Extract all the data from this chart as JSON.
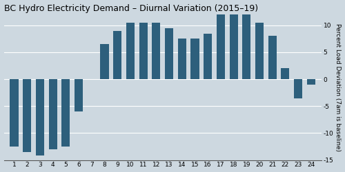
{
  "title": "BC Hydro Electricity Demand – Diurnal Variation (2015–19)",
  "hours": [
    1,
    2,
    3,
    4,
    5,
    6,
    7,
    8,
    9,
    10,
    11,
    12,
    13,
    14,
    15,
    16,
    17,
    18,
    19,
    20,
    21,
    22,
    23,
    24
  ],
  "values": [
    -12.5,
    -13.5,
    -14.2,
    -13.0,
    -12.5,
    -6.0,
    0.0,
    6.5,
    9.0,
    10.5,
    10.5,
    10.5,
    9.5,
    7.5,
    7.5,
    8.5,
    12.0,
    13.5,
    12.5,
    10.5,
    8.0,
    2.0,
    -3.5,
    -1.0
  ],
  "bar_color": "#2d5f7c",
  "background_color": "#cdd8e0",
  "ylabel": "Percent Load Deviation (7am is baseline)",
  "ylim": [
    -15,
    12
  ],
  "yticks": [
    -15,
    -10,
    -5,
    0,
    5,
    10
  ],
  "title_fontsize": 9,
  "axis_label_fontsize": 6.5,
  "tick_fontsize": 6.5
}
